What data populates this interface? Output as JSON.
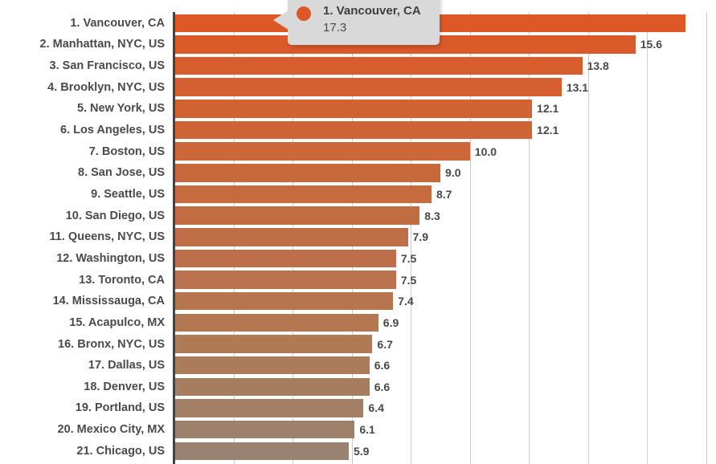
{
  "chart_data": {
    "type": "bar",
    "orientation": "horizontal",
    "title": "",
    "xlabel": "",
    "ylabel": "",
    "xlim": [
      0,
      18.33
    ],
    "x_gridlines": [
      2,
      4,
      6,
      8,
      10,
      12,
      14,
      16,
      18
    ],
    "grid": "vertical",
    "legend": "none",
    "categories": [
      "1. Vancouver, CA",
      "2. Manhattan, NYC, US",
      "3. San Francisco, US",
      "4. Brooklyn, NYC, US",
      "5. New York, US",
      "6. Los Angeles, US",
      "7. Boston, US",
      "8. San Jose, US",
      "9. Seattle, US",
      "10. San Diego, US",
      "11. Queens, NYC, US",
      "12. Washington, US",
      "13. Toronto, CA",
      "14. Mississauga, CA",
      "15. Acapulco, MX",
      "16. Bronx, NYC, US",
      "17. Dallas, US",
      "18. Denver, US",
      "19. Portland, US",
      "20. Mexico City, MX",
      "21. Chicago, US"
    ],
    "values": [
      17.3,
      15.6,
      13.8,
      13.1,
      12.1,
      12.1,
      10.0,
      9.0,
      8.7,
      8.3,
      7.9,
      7.5,
      7.5,
      7.4,
      6.9,
      6.7,
      6.6,
      6.6,
      6.4,
      6.1,
      5.9
    ],
    "value_labels": [
      "",
      "15.6",
      "13.8",
      "13.1",
      "12.1",
      "12.1",
      "10.0",
      "9.0",
      "8.7",
      "8.3",
      "7.9",
      "7.5",
      "7.5",
      "7.4",
      "6.9",
      "6.7",
      "6.6",
      "6.6",
      "6.4",
      "6.1",
      "5.9"
    ],
    "bar_colors": [
      "#DE5827",
      "#DB5A2A",
      "#D85D2D",
      "#D55F30",
      "#D16232",
      "#CE6435",
      "#CB6738",
      "#C8693B",
      "#C56B3E",
      "#C26C42",
      "#BF6E45",
      "#BC6F48",
      "#B9724B",
      "#B6754E",
      "#B37752",
      "#B07A55",
      "#AC7C5A",
      "#A77D60",
      "#A37F65",
      "#9E816B",
      "#9A8270"
    ]
  },
  "tooltip": {
    "title": "1. Vancouver, CA",
    "value": "17.3",
    "dot_color": "#DE5827",
    "background": "#d9d9d9"
  },
  "colors": {
    "background": "#ffffff",
    "axis_line": "#3e4448",
    "gridline": "#cbcbcb",
    "category_text": "#4a4a4c",
    "value_text": "#48484a"
  }
}
